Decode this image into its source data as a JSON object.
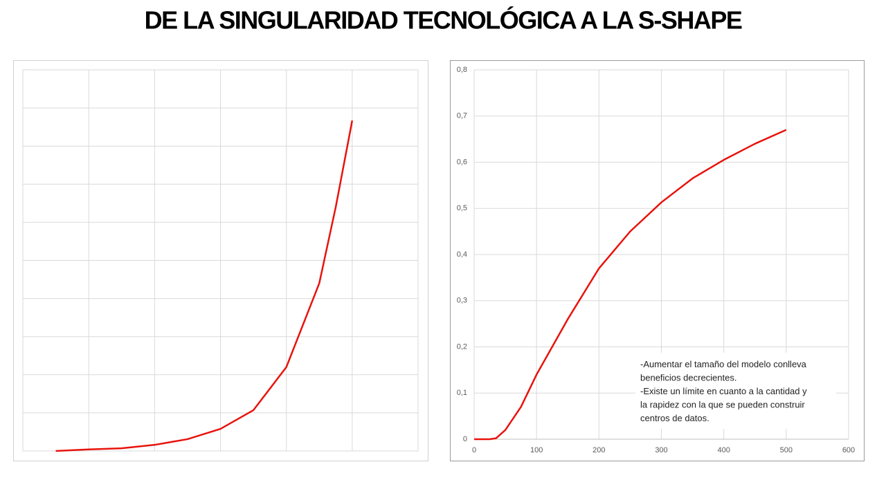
{
  "title": "DE LA SINGULARIDAD TECNOLÓGICA A LA S-SHAPE",
  "chart_data": [
    {
      "type": "line",
      "x": [
        0.5,
        1,
        1.5,
        2,
        2.5,
        3,
        3.5,
        4,
        4.5,
        4.75,
        5
      ],
      "series": [
        {
          "color": "#e8120c",
          "values": [
            0,
            0.04,
            0.07,
            0.16,
            0.31,
            0.58,
            1.07,
            2.2,
            4.4,
            6.4,
            8.67
          ]
        }
      ],
      "xlim": [
        0,
        6
      ],
      "ylim": [
        0,
        10
      ],
      "xticks": [
        0,
        1,
        2,
        3,
        4,
        5,
        6
      ],
      "yticks": [
        0,
        1,
        2,
        3,
        4,
        5,
        6,
        7,
        8,
        9,
        10
      ],
      "tick_labels": false,
      "grid": true
    },
    {
      "type": "line",
      "x": [
        0,
        25,
        35,
        50,
        75,
        100,
        125,
        150,
        200,
        250,
        300,
        350,
        400,
        450,
        500
      ],
      "series": [
        {
          "color": "#e8120c",
          "values": [
            0,
            0,
            0.002,
            0.02,
            0.07,
            0.14,
            0.2,
            0.26,
            0.37,
            0.45,
            0.513,
            0.565,
            0.605,
            0.64,
            0.67
          ]
        }
      ],
      "xlim": [
        0,
        600
      ],
      "ylim": [
        0,
        0.8
      ],
      "xticks": [
        0,
        100,
        200,
        300,
        400,
        500,
        600
      ],
      "yticks": [
        0,
        {
          "value": 0.1,
          "label": "0,1"
        },
        {
          "value": 0.2,
          "label": "0,2"
        },
        {
          "value": 0.3,
          "label": "0,3"
        },
        {
          "value": 0.4,
          "label": "0,4"
        },
        {
          "value": 0.5,
          "label": "0,5"
        },
        {
          "value": 0.6,
          "label": "0,6"
        },
        {
          "value": 0.7,
          "label": "0,7"
        },
        {
          "value": 0.8,
          "label": "0,8"
        }
      ],
      "tick_labels": true,
      "grid": true,
      "annotations": [
        "-Aumentar el tamaño del modelo conlleva",
        "beneficios decrecientes.",
        "-Existe un límite en cuanto a la cantidad y",
        "la rapidez con la que se pueden construir",
        "centros de datos."
      ]
    }
  ]
}
